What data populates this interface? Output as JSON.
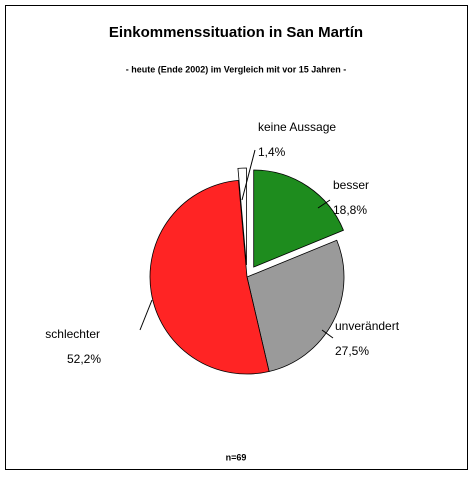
{
  "chart_data": {
    "type": "pie",
    "title": "Einkommenssituation in San Martín",
    "subtitle": "- heute (Ende 2002) im Vergleich mit vor 15 Jahren -",
    "note": "n=69",
    "categories": [
      "besser",
      "unverändert",
      "schlechter",
      "keine Aussage"
    ],
    "values": [
      18.8,
      27.5,
      52.2,
      1.4
    ],
    "value_labels": [
      "18,8%",
      "27,5%",
      "52,2%",
      "1,4%"
    ],
    "colors": [
      "#1e8c1e",
      "#9a9a9a",
      "#ff2424",
      "#ffffff"
    ],
    "exploded": [
      true,
      false,
      false,
      true
    ]
  }
}
